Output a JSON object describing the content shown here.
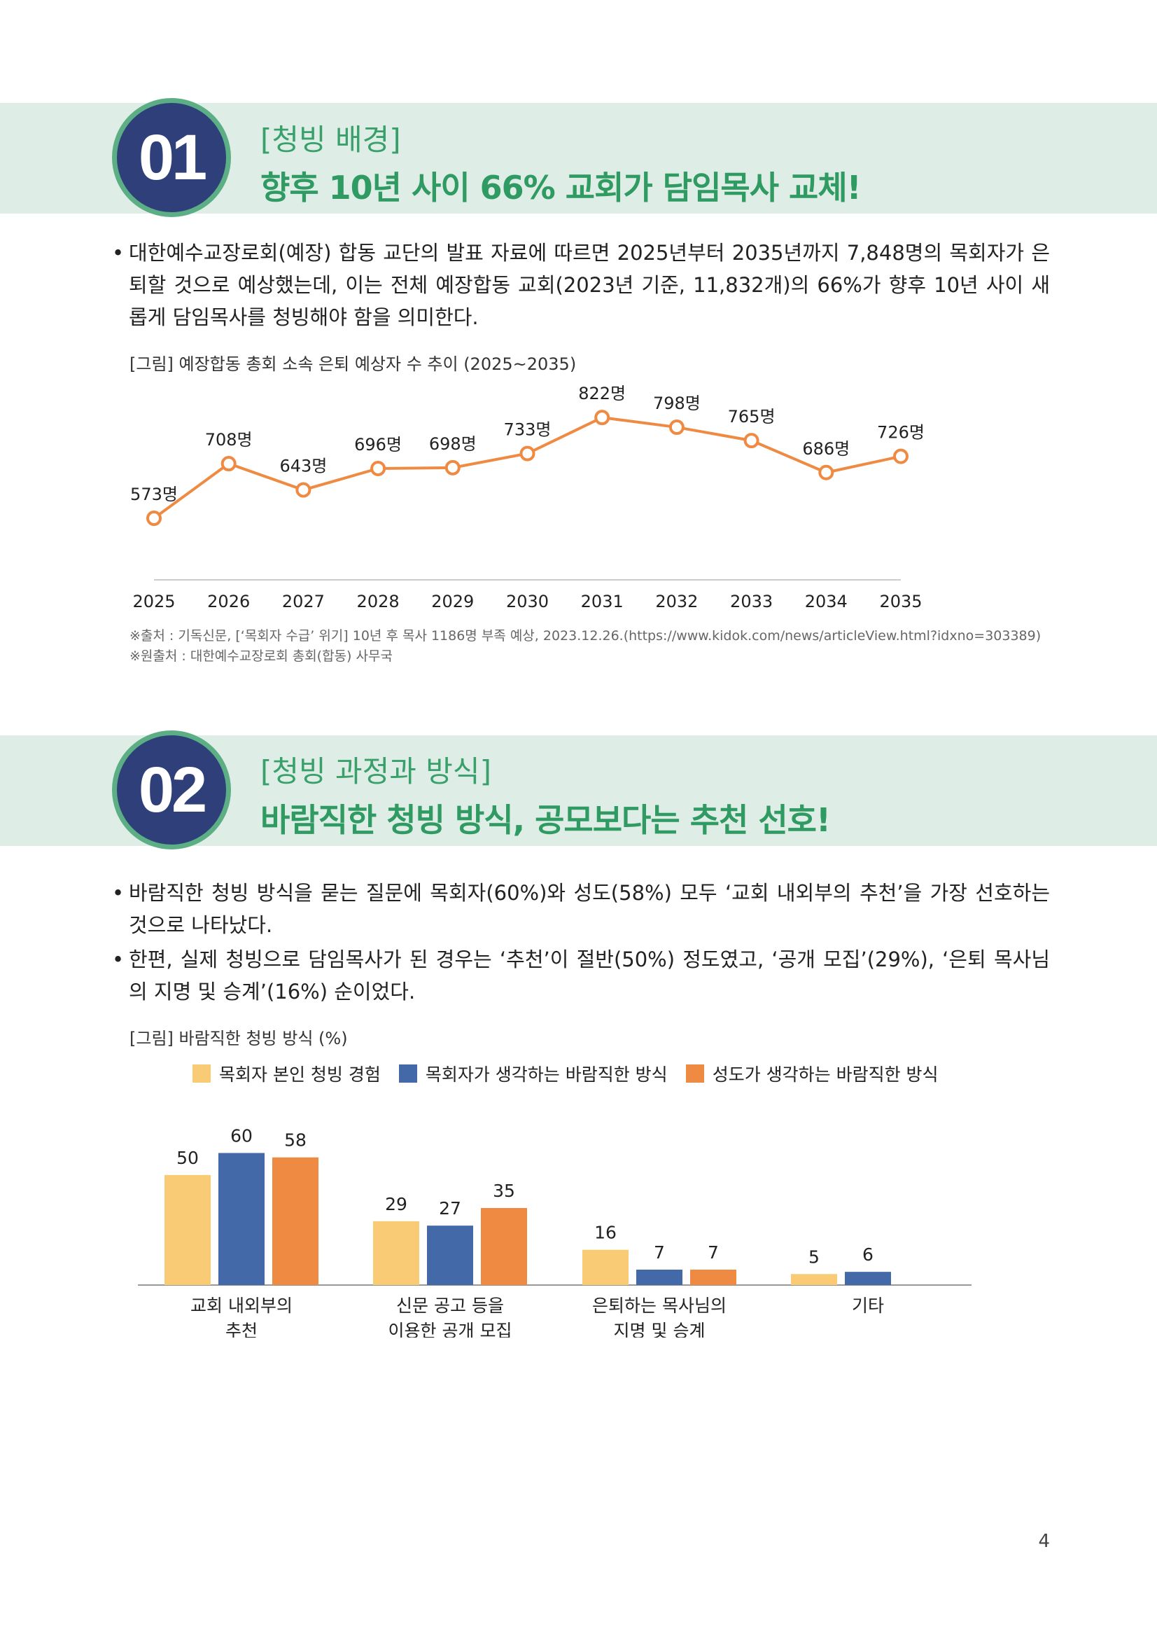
{
  "section1": {
    "number": "01",
    "subtitle": "[청빙 배경]",
    "title": "향후 10년 사이 66% 교회가 담임목사 교체!",
    "bullets": [
      "대한예수교장로회(예장) 합동 교단의 발표 자료에 따르면 2025년부터 2035년까지 7,848명의 목회자가 은퇴할 것으로 예상했는데, 이는 전체 예장합동 교회(2023년 기준, 11,832개)의 66%가 향후 10년 사이 새롭게 담임목사를 청빙해야 함을 의미한다."
    ],
    "caption": "[그림] 예장합동 총회 소속 은퇴 예상자 수 추이 (2025~2035)",
    "source": "※출처 : 기독신문, [‘목회자 수급’ 위기] 10년 후 목사 1186명 부족 예상, 2023.12.26.(https://www.kidok.com/news/articleView.html?idxno=303389)",
    "original_source": "※원출처 : 대한예수교장로회 총회(합동) 사무국"
  },
  "section2": {
    "number": "02",
    "subtitle": "[청빙 과정과 방식]",
    "title": "바람직한 청빙 방식, 공모보다는 추천 선호!",
    "bullets": [
      "바람직한 청빙 방식을 묻는 질문에 목회자(60%)와 성도(58%) 모두 ‘교회 내외부의 추천’을 가장 선호하는 것으로 나타났다.",
      "한편, 실제 청빙으로 담임목사가 된 경우는 ‘추천’이 절반(50%) 정도였고, ‘공개 모집’(29%), ‘은퇴 목사님의 지명 및 승계’(16%) 순이었다."
    ],
    "caption": "[그림] 바람직한 청빙 방식 (%)"
  },
  "chart_data": [
    {
      "type": "line",
      "title": "[그림] 예장합동 총회 소속 은퇴 예상자 수 추이 (2025~2035)",
      "x": [
        "2025",
        "2026",
        "2027",
        "2028",
        "2029",
        "2030",
        "2031",
        "2032",
        "2033",
        "2034",
        "2035"
      ],
      "values": [
        573,
        708,
        643,
        696,
        698,
        733,
        822,
        798,
        765,
        686,
        726
      ],
      "labels": [
        "573명",
        "708명",
        "643명",
        "696명",
        "698명",
        "733명",
        "822명",
        "798명",
        "765명",
        "686명",
        "726명"
      ],
      "unit": "명",
      "ylim": [
        400,
        850
      ],
      "color": "#ef8a43"
    },
    {
      "type": "bar",
      "title": "[그림] 바람직한 청빙 방식 (%)",
      "categories": [
        [
          "교회 내외부의",
          "추천"
        ],
        [
          "신문 공고 등을",
          "이용한 공개 모집"
        ],
        [
          "은퇴하는 목사님의",
          "지명 및 승계"
        ],
        [
          "기타"
        ]
      ],
      "series": [
        {
          "name": "목회자 본인 청빙 경험",
          "color": "#f9cb75",
          "values": [
            50,
            29,
            16,
            5
          ]
        },
        {
          "name": "목회자가 생각하는 바람직한 방식",
          "color": "#4469a8",
          "values": [
            60,
            27,
            7,
            6
          ]
        },
        {
          "name": "성도가 생각하는 바람직한 방식",
          "color": "#ef8a43",
          "values": [
            58,
            35,
            7,
            null
          ]
        }
      ],
      "ylim": [
        0,
        70
      ]
    }
  ],
  "page_number": "4"
}
